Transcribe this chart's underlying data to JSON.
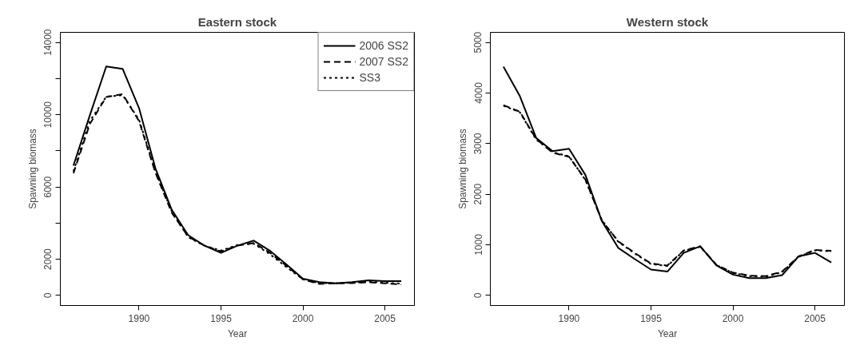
{
  "chart_data": [
    {
      "type": "line",
      "title": "Eastern stock",
      "xlabel": "Year",
      "ylabel": "Spawning biomass",
      "x": [
        1986,
        1987,
        1988,
        1989,
        1990,
        1991,
        1992,
        1993,
        1994,
        1995,
        1996,
        1997,
        1998,
        1999,
        2000,
        2001,
        2002,
        2003,
        2004,
        2005,
        2006
      ],
      "xlim": [
        1985.2,
        2006.8
      ],
      "xticks": [
        1990,
        1995,
        2000,
        2005
      ],
      "ylim": [
        -560,
        14560
      ],
      "yticks": [
        0,
        2000,
        {
          "value": 4000,
          "label": null
        },
        6000,
        {
          "value": 8000,
          "label": null
        },
        10000,
        {
          "value": 12000,
          "label": null
        },
        14000
      ],
      "grid": false,
      "legend": "top right",
      "series": [
        {
          "name": "2006 SS2",
          "color": "#000000",
          "line_style": "solid",
          "values": [
            7190,
            9970,
            12670,
            12540,
            10370,
            7030,
            4730,
            3330,
            2750,
            2350,
            2750,
            3030,
            2460,
            1710,
            920,
            730,
            670,
            730,
            830,
            790,
            790
          ]
        },
        {
          "name": "2007 SS2",
          "color": "#000000",
          "line_style": "dashed",
          "values": [
            6760,
            9490,
            10980,
            11140,
            9650,
            6790,
            4570,
            3250,
            2750,
            2430,
            2750,
            2900,
            2350,
            1630,
            890,
            630,
            670,
            680,
            730,
            670,
            600
          ]
        },
        {
          "name": "SS3",
          "color": "#000000",
          "line_style": "dotted",
          "values": [
            6870,
            9650,
            11000,
            11080,
            9730,
            6870,
            4650,
            3220,
            2750,
            2480,
            2790,
            2860,
            2270,
            1560,
            890,
            680,
            670,
            700,
            760,
            700,
            650
          ]
        }
      ]
    },
    {
      "type": "line",
      "title": "Western stock",
      "xlabel": "Year",
      "ylabel": "Spawning biomass",
      "x": [
        1986,
        1987,
        1988,
        1989,
        1990,
        1991,
        1992,
        1993,
        1994,
        1995,
        1996,
        1997,
        1998,
        1999,
        2000,
        2001,
        2002,
        2003,
        2004,
        2005,
        2006
      ],
      "xlim": [
        1985.2,
        2006.8
      ],
      "xticks": [
        1990,
        1995,
        2000,
        2005
      ],
      "ylim": [
        -200,
        5200
      ],
      "yticks": [
        0,
        1000,
        2000,
        3000,
        4000,
        5000
      ],
      "grid": false,
      "legend": false,
      "series": [
        {
          "color": "#000000",
          "line_style": "solid",
          "values": [
            4520,
            3940,
            3110,
            2850,
            2900,
            2380,
            1470,
            940,
            720,
            510,
            470,
            840,
            970,
            590,
            410,
            340,
            340,
            400,
            770,
            840,
            650
          ]
        },
        {
          "color": "#000000",
          "line_style": "dashed",
          "values": [
            3760,
            3630,
            3090,
            2820,
            2740,
            2290,
            1480,
            1070,
            840,
            630,
            590,
            890,
            970,
            600,
            450,
            390,
            380,
            470,
            770,
            900,
            880
          ]
        },
        {
          "color": "#000000",
          "line_style": "dotted",
          "values": [
            3750,
            3620,
            3080,
            2830,
            2750,
            2280,
            1490,
            1060,
            830,
            620,
            580,
            880,
            960,
            600,
            440,
            380,
            370,
            460,
            760,
            890,
            870
          ]
        }
      ]
    }
  ]
}
